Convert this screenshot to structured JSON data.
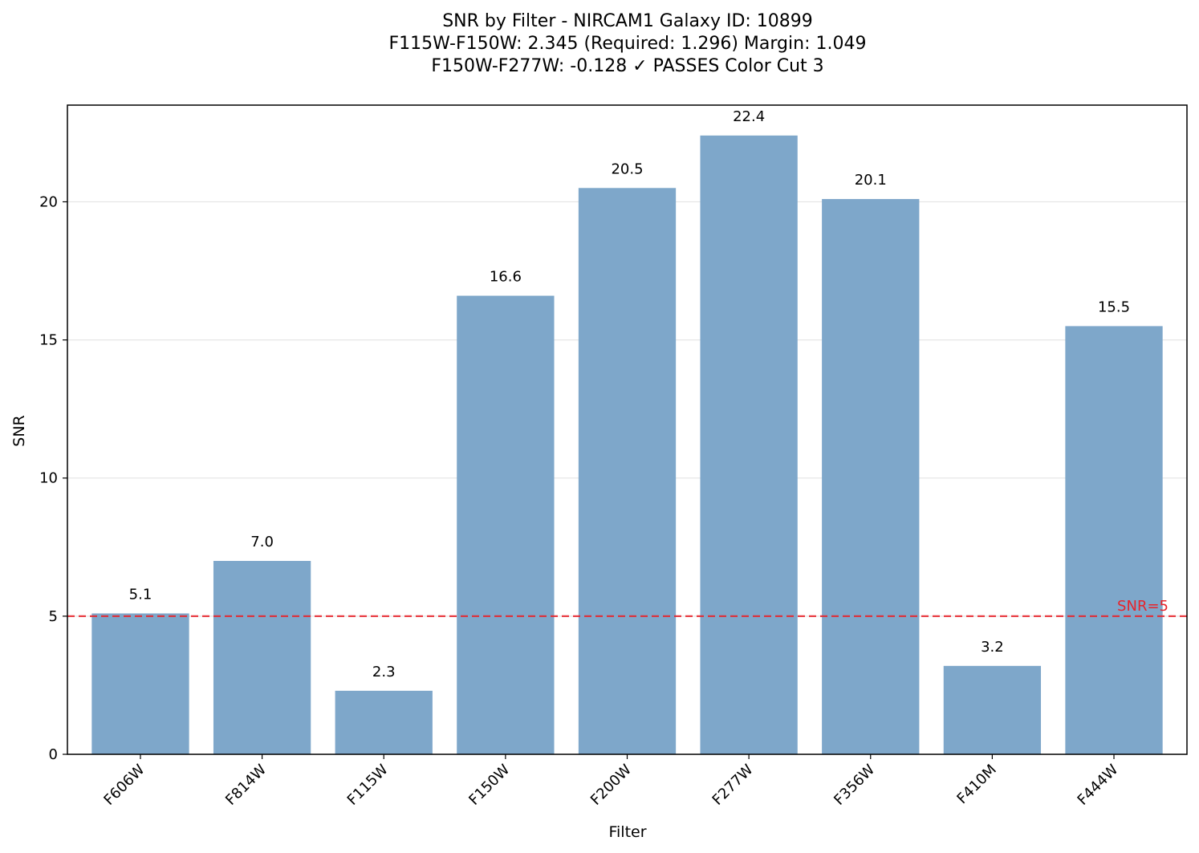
{
  "chart_data": {
    "type": "bar",
    "title": [
      "SNR by Filter - NIRCAM1 Galaxy ID: 10899",
      "F115W-F150W: 2.345 (Required: 1.296) Margin: 1.049",
      "F150W-F277W: -0.128 ✓ PASSES Color Cut 3"
    ],
    "xlabel": "Filter",
    "ylabel": "SNR",
    "categories": [
      "F606W",
      "F814W",
      "F115W",
      "F150W",
      "F200W",
      "F277W",
      "F356W",
      "F410M",
      "F444W"
    ],
    "values": [
      5.1,
      7.0,
      2.3,
      16.6,
      20.5,
      22.4,
      20.1,
      3.2,
      15.5
    ],
    "value_labels": [
      "5.1",
      "7.0",
      "2.3",
      "16.6",
      "20.5",
      "22.4",
      "20.1",
      "3.2",
      "15.5"
    ],
    "ylim": [
      0,
      23.5
    ],
    "yticks": [
      0,
      5,
      10,
      15,
      20
    ],
    "ytick_labels": [
      "0",
      "5",
      "10",
      "15",
      "20"
    ],
    "grid": "y",
    "bar_color": "#7ea7ca",
    "reference_line": {
      "value": 5,
      "label": "SNR=5",
      "color": "#e8232a"
    }
  }
}
